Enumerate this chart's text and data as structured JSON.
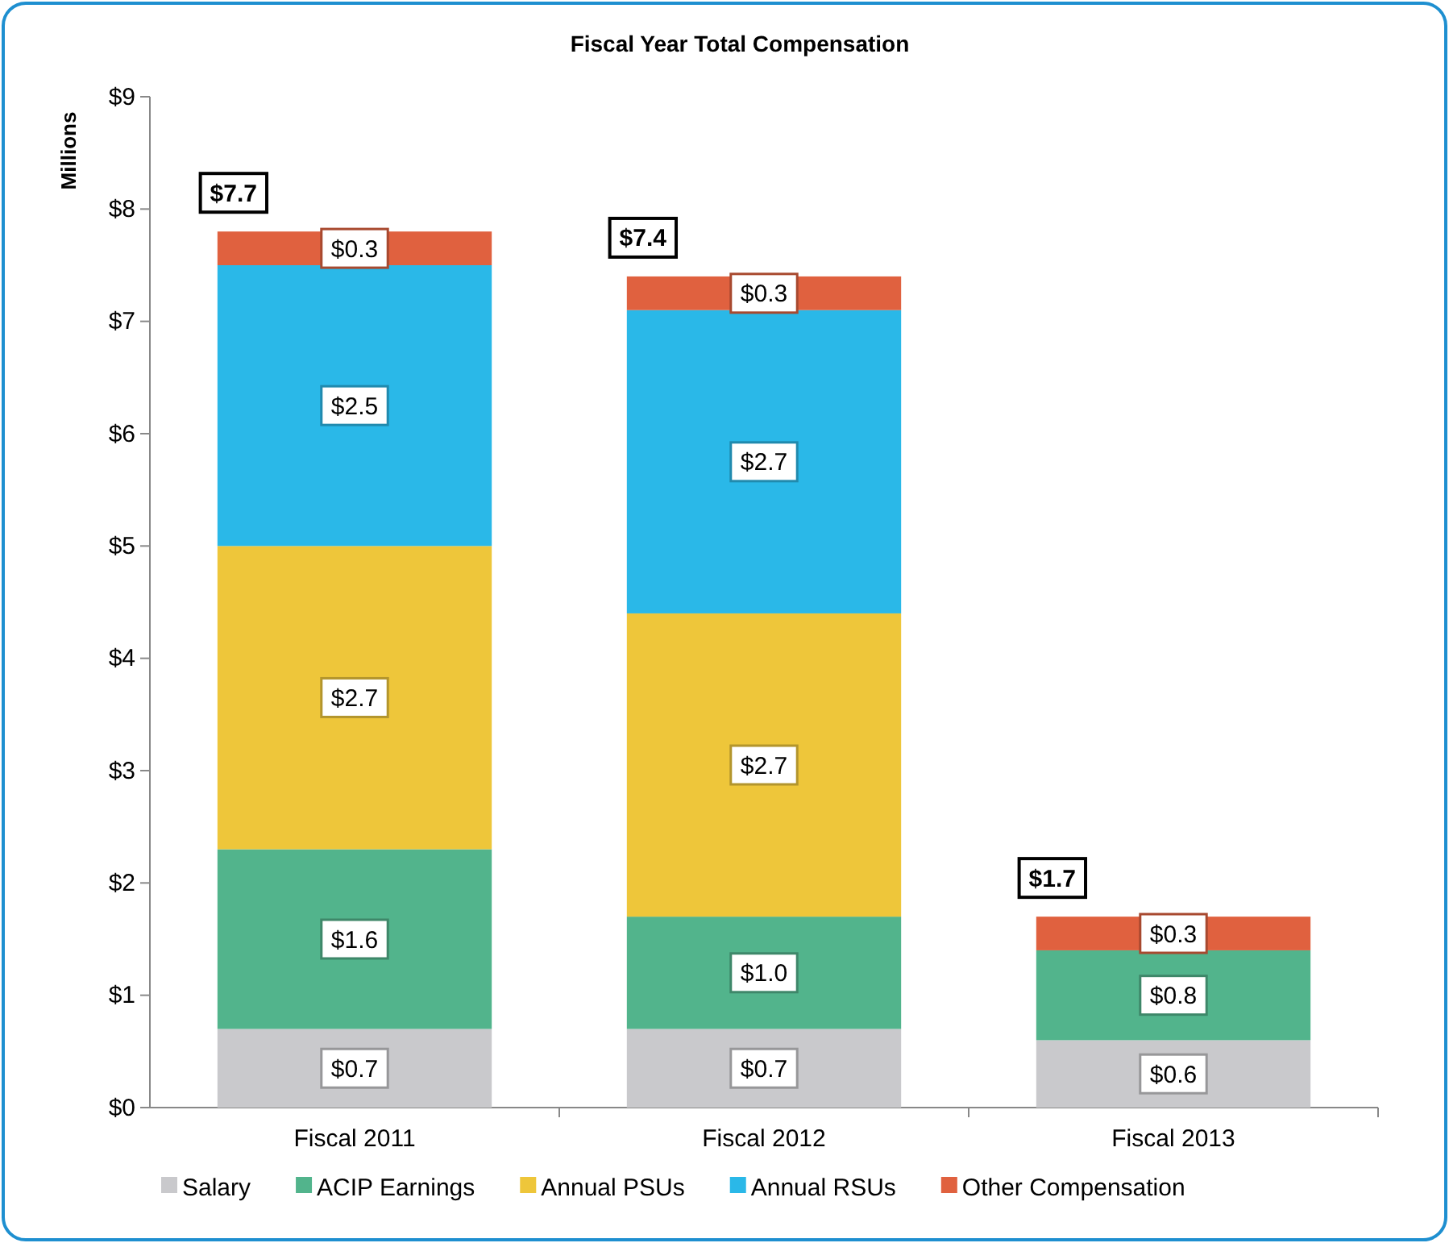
{
  "chart_data": {
    "type": "bar",
    "stacked": true,
    "title": "Fiscal Year Total Compensation",
    "ylabel": "Millions",
    "categories": [
      "Fiscal 2011",
      "Fiscal 2012",
      "Fiscal 2013"
    ],
    "series": [
      {
        "name": "Salary",
        "color": "#c9c9cc",
        "values": [
          0.7,
          0.7,
          0.6
        ],
        "value_labels": [
          "$0.7",
          "$0.7",
          "$0.6"
        ]
      },
      {
        "name": "ACIP Earnings",
        "color": "#52b48c",
        "values": [
          1.6,
          1.0,
          0.8
        ],
        "value_labels": [
          "$1.6",
          "$1.0",
          "$0.8"
        ]
      },
      {
        "name": "Annual PSUs",
        "color": "#eec63a",
        "values": [
          2.7,
          2.7,
          0
        ],
        "value_labels": [
          "$2.7",
          "$2.7",
          null
        ]
      },
      {
        "name": "Annual RSUs",
        "color": "#2ab8e8",
        "values": [
          2.5,
          2.7,
          0
        ],
        "value_labels": [
          "$2.5",
          "$2.7",
          null
        ]
      },
      {
        "name": "Other Compensation",
        "color": "#e0613f",
        "values": [
          0.3,
          0.3,
          0.3
        ],
        "value_labels": [
          "$0.3",
          "$0.3",
          "$0.3"
        ]
      }
    ],
    "totals": [
      "$7.7",
      "$7.4",
      "$1.7"
    ],
    "ylim": [
      0,
      9
    ],
    "yticks": [
      {
        "value": 0,
        "label": "$0"
      },
      {
        "value": 1,
        "label": "$1"
      },
      {
        "value": 2,
        "label": "$2"
      },
      {
        "value": 3,
        "label": "$3"
      },
      {
        "value": 4,
        "label": "$4"
      },
      {
        "value": 5,
        "label": "$5"
      },
      {
        "value": 6,
        "label": "$6"
      },
      {
        "value": 7,
        "label": "$7"
      },
      {
        "value": 8,
        "label": "$8"
      },
      {
        "value": 9,
        "label": "$9"
      }
    ],
    "grid": false,
    "legend": "bottom"
  }
}
